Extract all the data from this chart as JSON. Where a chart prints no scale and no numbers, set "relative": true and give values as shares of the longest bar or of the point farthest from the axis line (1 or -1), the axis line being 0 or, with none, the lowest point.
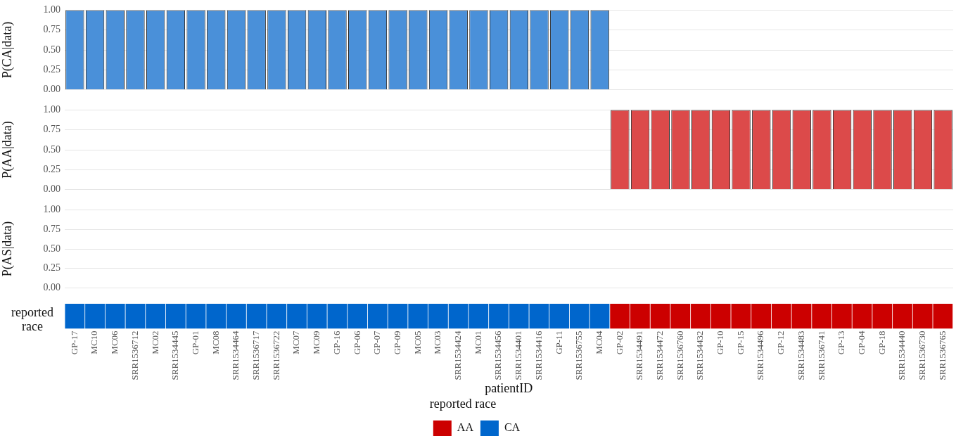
{
  "chart_data": [
    {
      "type": "bar",
      "ylabel": "P(CA|data)",
      "categories": [
        null,
        null,
        null,
        null,
        null,
        null,
        null,
        null,
        null,
        null,
        null,
        null,
        null,
        null,
        null,
        null,
        null,
        null,
        null,
        null,
        null,
        null,
        null,
        null,
        null,
        null,
        null,
        null,
        null,
        null,
        null,
        null,
        null,
        null,
        null,
        null,
        null,
        null,
        null,
        null,
        null,
        null,
        null,
        null
      ],
      "values": [
        1,
        1,
        1,
        1,
        1,
        1,
        1,
        1,
        1,
        1,
        1,
        1,
        1,
        1,
        1,
        1,
        1,
        1,
        1,
        1,
        1,
        1,
        1,
        1,
        1,
        1,
        1,
        0,
        0,
        0,
        0,
        0,
        0,
        0,
        0,
        0,
        0,
        0,
        0,
        0,
        0,
        0,
        0,
        0
      ],
      "color": "#4a90d9",
      "ylim": [
        0,
        1
      ],
      "yticks": [
        {
          "value": 0,
          "label": "0.00"
        },
        {
          "value": 0.25,
          "label": "0.25"
        },
        {
          "value": 0.5,
          "label": "0.50"
        },
        {
          "value": 0.75,
          "label": "0.75"
        },
        {
          "value": 1,
          "label": "1.00"
        }
      ],
      "grid": "y",
      "tick_labels": "y",
      "legend": false
    },
    {
      "type": "bar",
      "ylabel": "P(AA|data)",
      "categories": [
        null,
        null,
        null,
        null,
        null,
        null,
        null,
        null,
        null,
        null,
        null,
        null,
        null,
        null,
        null,
        null,
        null,
        null,
        null,
        null,
        null,
        null,
        null,
        null,
        null,
        null,
        null,
        null,
        null,
        null,
        null,
        null,
        null,
        null,
        null,
        null,
        null,
        null,
        null,
        null,
        null,
        null,
        null,
        null
      ],
      "values": [
        0,
        0,
        0,
        0,
        0,
        0,
        0,
        0,
        0,
        0,
        0,
        0,
        0,
        0,
        0,
        0,
        0,
        0,
        0,
        0,
        0,
        0,
        0,
        0,
        0,
        0,
        0,
        1,
        1,
        1,
        1,
        1,
        1,
        1,
        1,
        1,
        1,
        1,
        1,
        1,
        1,
        1,
        1,
        1
      ],
      "color": "#dc4a4a",
      "ylim": [
        0,
        1
      ],
      "yticks": [
        {
          "value": 0,
          "label": "0.00"
        },
        {
          "value": 0.25,
          "label": "0.25"
        },
        {
          "value": 0.5,
          "label": "0.50"
        },
        {
          "value": 0.75,
          "label": "0.75"
        },
        {
          "value": 1,
          "label": "1.00"
        }
      ],
      "grid": "y",
      "tick_labels": "y",
      "legend": false
    },
    {
      "type": "bar",
      "ylabel": "P(AS|data)",
      "categories": [
        null,
        null,
        null,
        null,
        null,
        null,
        null,
        null,
        null,
        null,
        null,
        null,
        null,
        null,
        null,
        null,
        null,
        null,
        null,
        null,
        null,
        null,
        null,
        null,
        null,
        null,
        null,
        null,
        null,
        null,
        null,
        null,
        null,
        null,
        null,
        null,
        null,
        null,
        null,
        null,
        null,
        null,
        null,
        null
      ],
      "values": [
        0,
        0,
        0,
        0,
        0,
        0,
        0,
        0,
        0,
        0,
        0,
        0,
        0,
        0,
        0,
        0,
        0,
        0,
        0,
        0,
        0,
        0,
        0,
        0,
        0,
        0,
        0,
        0,
        0,
        0,
        0,
        0,
        0,
        0,
        0,
        0,
        0,
        0,
        0,
        0,
        0,
        0,
        0,
        0
      ],
      "color": "#555555",
      "ylim": [
        0,
        1
      ],
      "yticks": [
        {
          "value": 0,
          "label": "0.00"
        },
        {
          "value": 0.25,
          "label": "0.25"
        },
        {
          "value": 0.5,
          "label": "0.50"
        },
        {
          "value": 0.75,
          "label": "0.75"
        },
        {
          "value": 1,
          "label": "1.00"
        }
      ],
      "grid": "y",
      "tick_labels": "y",
      "legend": false
    },
    {
      "type": "bar",
      "ylabel": "reported race",
      "xlabel": "patientID",
      "legend_title": "reported race",
      "legend": "bottom",
      "relative": true,
      "stacked": true,
      "tick_labels": "x",
      "grid": false,
      "categories": [
        "GP-17",
        "MC10",
        "MC06",
        "SRR1536712",
        "MC02",
        "SRR1534445",
        "GP-01",
        "MC08",
        "SRR1534464",
        "SRR1536717",
        "SRR1536722",
        "MC07",
        "MC09",
        "GP-16",
        "GP-06",
        "GP-07",
        "GP-09",
        "MC05",
        "MC03",
        "SRR1534424",
        "MC01",
        "SRR1534456",
        "SRR1534401",
        "SRR1534416",
        "GP-11",
        "SRR1536755",
        "MC04",
        "GP-02",
        "SRR1534491",
        "SRR1534472",
        "SRR1536760",
        "SRR1534432",
        "GP-10",
        "GP-15",
        "SRR1534496",
        "GP-12",
        "SRR1534483",
        "SRR1536741",
        "GP-13",
        "GP-04",
        "GP-18",
        "SRR1534440",
        "SRR1536730",
        "SRR1536765"
      ],
      "series": [
        {
          "name": "AA",
          "color": "#cc0000",
          "values": [
            null,
            null,
            null,
            null,
            null,
            null,
            null,
            null,
            null,
            null,
            null,
            null,
            null,
            null,
            null,
            null,
            null,
            null,
            null,
            null,
            null,
            null,
            null,
            null,
            null,
            null,
            null,
            1,
            1,
            1,
            1,
            1,
            1,
            1,
            1,
            1,
            1,
            1,
            1,
            1,
            1,
            1,
            1,
            1
          ]
        },
        {
          "name": "CA",
          "color": "#0066cc",
          "values": [
            1,
            1,
            1,
            1,
            1,
            1,
            1,
            1,
            1,
            1,
            1,
            1,
            1,
            1,
            1,
            1,
            1,
            1,
            1,
            1,
            1,
            1,
            1,
            1,
            1,
            1,
            1,
            null,
            null,
            null,
            null,
            null,
            null,
            null,
            null,
            null,
            null,
            null,
            null,
            null,
            null,
            null,
            null,
            null
          ]
        }
      ]
    }
  ]
}
